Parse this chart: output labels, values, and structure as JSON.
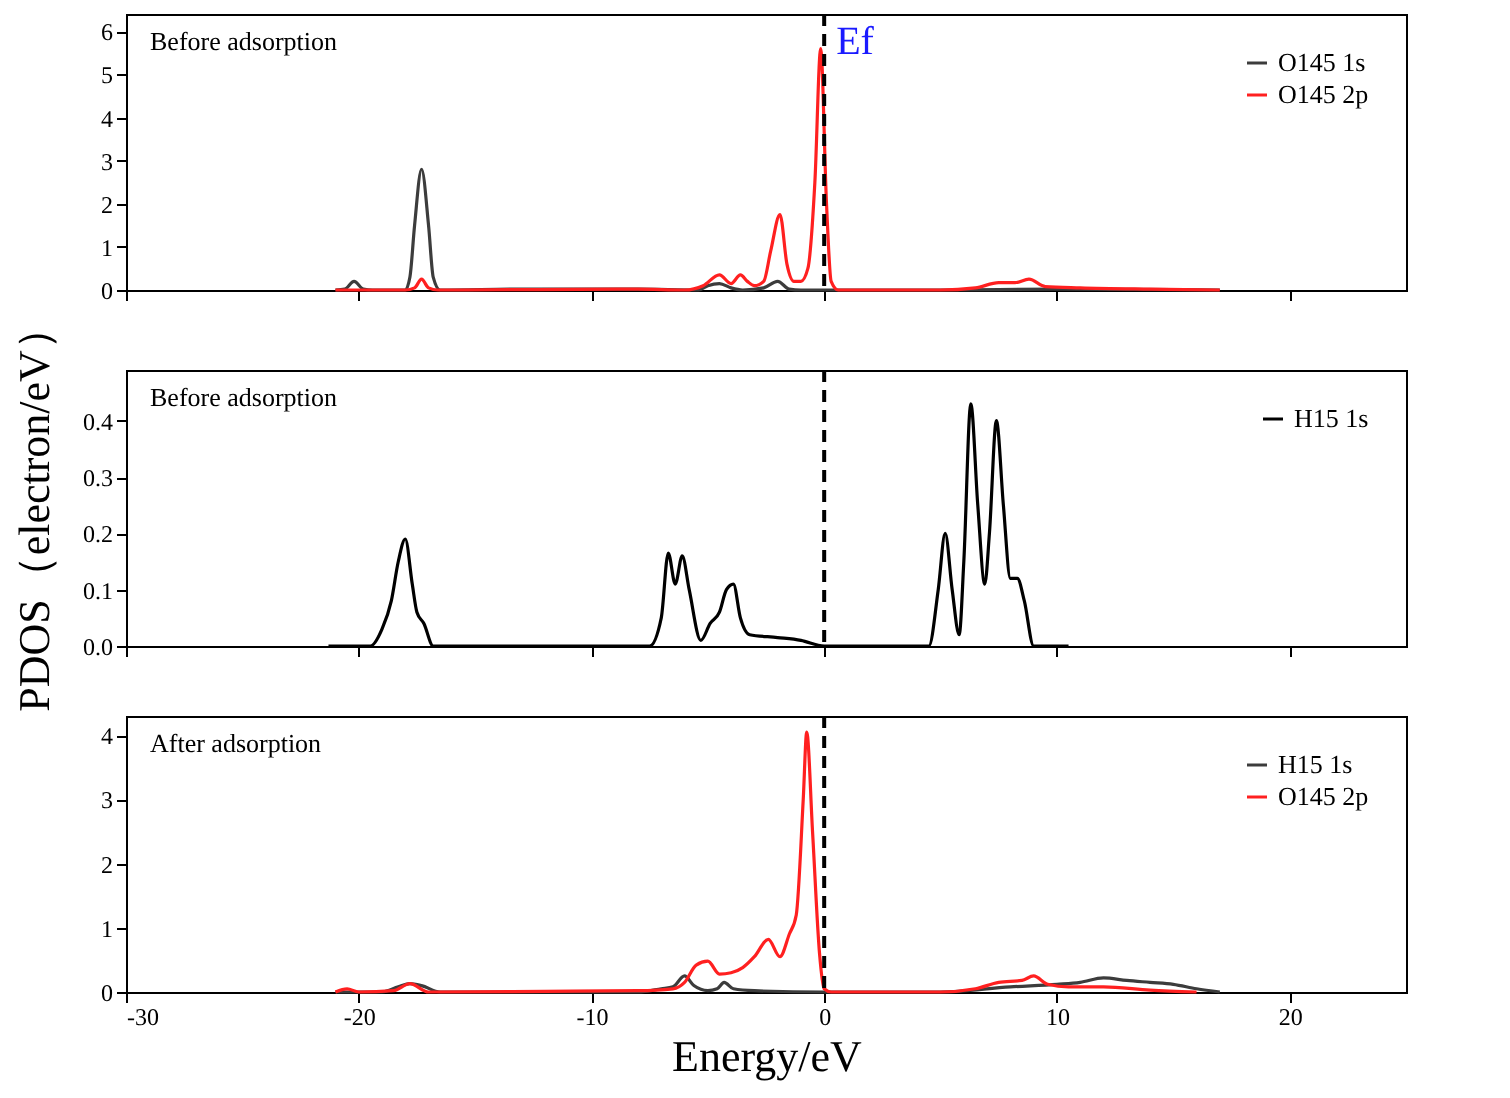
{
  "chart_data": [
    {
      "type": "line",
      "annotations": [
        "Before adsorption"
      ],
      "xlim": [
        -30,
        25
      ],
      "xticks": [
        -30,
        -20,
        -10,
        0,
        10,
        20
      ],
      "ylim": [
        0,
        6.4
      ],
      "yticks": [
        0,
        1,
        2,
        3,
        4,
        5,
        6
      ],
      "tick_labels": "y",
      "legend": "top right",
      "grid": false,
      "ref_lines": [
        {
          "axis": "x",
          "value": 0,
          "label": "Ef",
          "color": "#000000",
          "line_style": "dashed"
        }
      ],
      "series": [
        {
          "name": "O145 1s",
          "color": "#3c3c3c",
          "x": [
            -21,
            -20.6,
            -20.2,
            -19.8,
            -19.4,
            -18,
            -17.8,
            -17.6,
            -17.3,
            -17.0,
            -16.8,
            -16.5,
            -13,
            -8,
            -5.4,
            -5,
            -4.5,
            -4.0,
            -3.5,
            -2.6,
            -2.0,
            -1.5,
            -1.0,
            0,
            5,
            10,
            17
          ],
          "values": [
            0,
            0.02,
            0.2,
            0.02,
            0,
            0,
            0.3,
            1.5,
            2.8,
            1.5,
            0.3,
            0,
            0.02,
            0.02,
            0,
            0.1,
            0.15,
            0.05,
            0,
            0.05,
            0.2,
            0.02,
            0,
            0,
            0,
            0.02,
            0
          ]
        },
        {
          "name": "O145 2p",
          "color": "#ff2020",
          "x": [
            -21,
            -18,
            -17.6,
            -17.3,
            -17.0,
            -16.6,
            -8,
            -6,
            -5.2,
            -4.5,
            -4.0,
            -3.6,
            -3.3,
            -3.0,
            -2.6,
            -2.3,
            -1.9,
            -1.6,
            -1.3,
            -1.0,
            -0.7,
            -0.4,
            -0.15,
            0.1,
            0.3,
            0.6,
            5,
            6.5,
            7.5,
            8.2,
            8.8,
            9.5,
            11,
            14,
            17
          ],
          "values": [
            0,
            0,
            0.05,
            0.25,
            0.05,
            0,
            0.02,
            0,
            0.1,
            0.35,
            0.15,
            0.35,
            0.2,
            0.1,
            0.2,
            0.9,
            1.75,
            0.6,
            0.2,
            0.2,
            0.5,
            2.5,
            5.6,
            2,
            0.2,
            0,
            0,
            0.05,
            0.17,
            0.17,
            0.25,
            0.08,
            0.05,
            0.02,
            0
          ]
        }
      ]
    },
    {
      "type": "line",
      "annotations": [
        "Before adsorption"
      ],
      "ylabel": "PDOS（electron/eV）",
      "xlim": [
        -30,
        25
      ],
      "xticks": [
        -30,
        -20,
        -10,
        0,
        10,
        20
      ],
      "ylim": [
        0,
        0.49
      ],
      "yticks": [
        {
          "value": 0,
          "label": "0.0"
        },
        0.1,
        0.2,
        0.3,
        0.4
      ],
      "tick_labels": "y",
      "legend": "top right",
      "grid": false,
      "ref_lines": [
        {
          "axis": "x",
          "value": 0,
          "color": "#000000",
          "line_style": "dashed"
        }
      ],
      "series": [
        {
          "name": "H15 1s",
          "color": "#000000",
          "x": [
            -21.3,
            -19.5,
            -19.0,
            -18.6,
            -18.3,
            -18.0,
            -17.7,
            -17.5,
            -17.2,
            -16.8,
            -12,
            -7.5,
            -7.0,
            -6.7,
            -6.4,
            -6.1,
            -5.8,
            -5.3,
            -4.9,
            -4.5,
            -4.2,
            -3.9,
            -3.6,
            -3.2,
            -2,
            -1,
            0,
            4.5,
            4.9,
            5.2,
            5.5,
            5.8,
            6.0,
            6.3,
            6.6,
            6.9,
            7.1,
            7.4,
            7.7,
            8.0,
            8.3,
            8.6,
            9.0,
            10.5
          ],
          "values": [
            0,
            0,
            0.03,
            0.08,
            0.15,
            0.19,
            0.11,
            0.06,
            0.04,
            0,
            0,
            0,
            0.05,
            0.165,
            0.11,
            0.16,
            0.1,
            0.01,
            0.04,
            0.06,
            0.1,
            0.11,
            0.05,
            0.02,
            0.015,
            0.01,
            0,
            0,
            0.1,
            0.2,
            0.1,
            0.02,
            0.15,
            0.43,
            0.25,
            0.11,
            0.2,
            0.4,
            0.25,
            0.12,
            0.12,
            0.08,
            0,
            0
          ]
        }
      ]
    },
    {
      "type": "line",
      "annotations": [
        "After adsorption"
      ],
      "xlabel": "Energy/eV",
      "xlim": [
        -30,
        25
      ],
      "xticks": [
        -30,
        -20,
        -10,
        0,
        10,
        20
      ],
      "ylim": [
        0,
        4.3
      ],
      "yticks": [
        0,
        1,
        2,
        3,
        4
      ],
      "legend": "top right",
      "grid": false,
      "ref_lines": [
        {
          "axis": "x",
          "value": 0,
          "color": "#000000",
          "line_style": "dashed"
        }
      ],
      "series": [
        {
          "name": "H15 1s",
          "color": "#3c3c3c",
          "x": [
            -21,
            -19,
            -18.3,
            -17.8,
            -17.3,
            -16.5,
            -8,
            -7,
            -6.5,
            -6.0,
            -5.6,
            -5.0,
            -4.6,
            -4.3,
            -3.9,
            -3,
            0,
            5,
            8,
            10,
            11,
            12,
            13,
            14,
            15,
            16,
            17
          ],
          "values": [
            0,
            0,
            0.08,
            0.13,
            0.1,
            0,
            0,
            0.05,
            0.08,
            0.25,
            0.1,
            0.02,
            0.05,
            0.15,
            0.05,
            0.02,
            0,
            0,
            0.08,
            0.12,
            0.15,
            0.22,
            0.18,
            0.15,
            0.12,
            0.05,
            0
          ]
        },
        {
          "name": "O145 2p",
          "color": "#ff2020",
          "x": [
            -21,
            -20.5,
            -20.0,
            -18.5,
            -17.8,
            -17.0,
            -12,
            -8,
            -6.5,
            -6.0,
            -5.5,
            -5.0,
            -4.5,
            -4.0,
            -3.5,
            -3.0,
            -2.4,
            -1.9,
            -1.5,
            -1.2,
            -0.9,
            -0.75,
            -0.5,
            -0.2,
            0,
            0.3,
            5,
            6.5,
            7.5,
            8.5,
            9.0,
            9.6,
            10.5,
            12,
            14,
            16
          ],
          "values": [
            0,
            0.05,
            0,
            0.02,
            0.13,
            0,
            0.01,
            0.02,
            0.05,
            0.15,
            0.42,
            0.48,
            0.28,
            0.3,
            0.38,
            0.55,
            0.82,
            0.55,
            0.9,
            1.2,
            3.0,
            4.05,
            2.5,
            0.6,
            0.05,
            0,
            0,
            0.05,
            0.15,
            0.18,
            0.25,
            0.12,
            0.08,
            0.08,
            0.03,
            0
          ]
        }
      ]
    }
  ]
}
